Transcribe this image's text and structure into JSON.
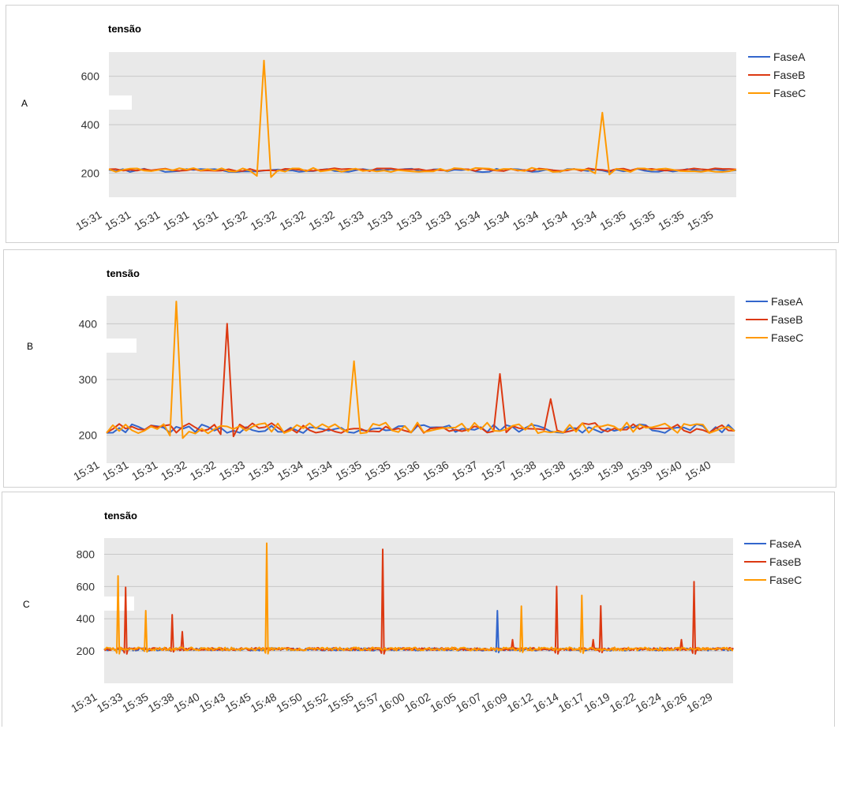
{
  "series_colors": {
    "FaseA": "#3366cc",
    "FaseB": "#dc3912",
    "FaseC": "#ff9900"
  },
  "chart_data": [
    {
      "type": "line",
      "panel_label": "A",
      "title": "tensão",
      "legend": [
        "FaseA",
        "FaseB",
        "FaseC"
      ],
      "legend_position": "right",
      "ylim": [
        100,
        700
      ],
      "yticks": [
        200,
        400,
        600
      ],
      "grid": true,
      "xtick_labels": [
        "15:31",
        "15:31",
        "15:31",
        "15:31",
        "15:31",
        "15:32",
        "15:32",
        "15:32",
        "15:32",
        "15:33",
        "15:33",
        "15:33",
        "15:33",
        "15:34",
        "15:34",
        "15:34",
        "15:34",
        "15:34",
        "15:35",
        "15:35",
        "15:35",
        "15:35"
      ],
      "n_points": 90,
      "series": [
        {
          "name": "FaseA",
          "baseline": 211,
          "amplitude": 7,
          "spikes": []
        },
        {
          "name": "FaseB",
          "baseline": 214,
          "amplitude": 6,
          "spikes": []
        },
        {
          "name": "FaseC",
          "baseline": 213,
          "amplitude": 9,
          "spikes": [
            {
              "index": 22,
              "value": 665
            },
            {
              "index": 70,
              "value": 450
            }
          ]
        }
      ]
    },
    {
      "type": "line",
      "panel_label": "B",
      "title": "tensão",
      "legend": [
        "FaseA",
        "FaseB",
        "FaseC"
      ],
      "legend_position": "right",
      "ylim": [
        150,
        450
      ],
      "yticks": [
        200,
        300,
        400
      ],
      "grid": true,
      "xtick_labels": [
        "15:31",
        "15:31",
        "15:31",
        "15:32",
        "15:32",
        "15:33",
        "15:33",
        "15:34",
        "15:34",
        "15:35",
        "15:35",
        "15:36",
        "15:36",
        "15:37",
        "15:37",
        "15:38",
        "15:38",
        "15:38",
        "15:39",
        "15:39",
        "15:40",
        "15:40"
      ],
      "n_points": 100,
      "series": [
        {
          "name": "FaseA",
          "baseline": 212,
          "amplitude": 8,
          "spikes": []
        },
        {
          "name": "FaseB",
          "baseline": 213,
          "amplitude": 9,
          "spikes": [
            {
              "index": 19,
              "value": 400
            },
            {
              "index": 62,
              "value": 310
            },
            {
              "index": 70,
              "value": 265
            }
          ]
        },
        {
          "name": "FaseC",
          "baseline": 213,
          "amplitude": 10,
          "spikes": [
            {
              "index": 11,
              "value": 440
            },
            {
              "index": 39,
              "value": 333
            }
          ]
        }
      ]
    },
    {
      "type": "line",
      "panel_label": "C",
      "title": "tensão",
      "legend": [
        "FaseA",
        "FaseB",
        "FaseC"
      ],
      "legend_position": "right",
      "ylim": [
        0,
        900
      ],
      "yticks": [
        200,
        400,
        600,
        800
      ],
      "grid": true,
      "xtick_labels": [
        "15:31",
        "15:33",
        "15:35",
        "15:38",
        "15:40",
        "15:43",
        "15:45",
        "15:48",
        "15:50",
        "15:52",
        "15:55",
        "15:57",
        "16:00",
        "16:02",
        "16:05",
        "16:07",
        "16:09",
        "16:12",
        "16:14",
        "16:17",
        "16:19",
        "16:22",
        "16:24",
        "16:26",
        "16:29"
      ],
      "n_points": 500,
      "series": [
        {
          "name": "FaseA",
          "baseline": 210,
          "amplitude": 8,
          "spikes": [
            {
              "index": 312,
              "value": 450
            }
          ]
        },
        {
          "name": "FaseB",
          "baseline": 212,
          "amplitude": 8,
          "spikes": [
            {
              "index": 17,
              "value": 595
            },
            {
              "index": 54,
              "value": 425
            },
            {
              "index": 62,
              "value": 320
            },
            {
              "index": 221,
              "value": 830
            },
            {
              "index": 324,
              "value": 270
            },
            {
              "index": 359,
              "value": 600
            },
            {
              "index": 388,
              "value": 270
            },
            {
              "index": 394,
              "value": 480
            },
            {
              "index": 458,
              "value": 270
            },
            {
              "index": 468,
              "value": 630
            }
          ]
        },
        {
          "name": "FaseC",
          "baseline": 213,
          "amplitude": 10,
          "spikes": [
            {
              "index": 11,
              "value": 665
            },
            {
              "index": 33,
              "value": 450
            },
            {
              "index": 129,
              "value": 868
            },
            {
              "index": 331,
              "value": 478
            },
            {
              "index": 379,
              "value": 545
            }
          ]
        }
      ]
    }
  ]
}
